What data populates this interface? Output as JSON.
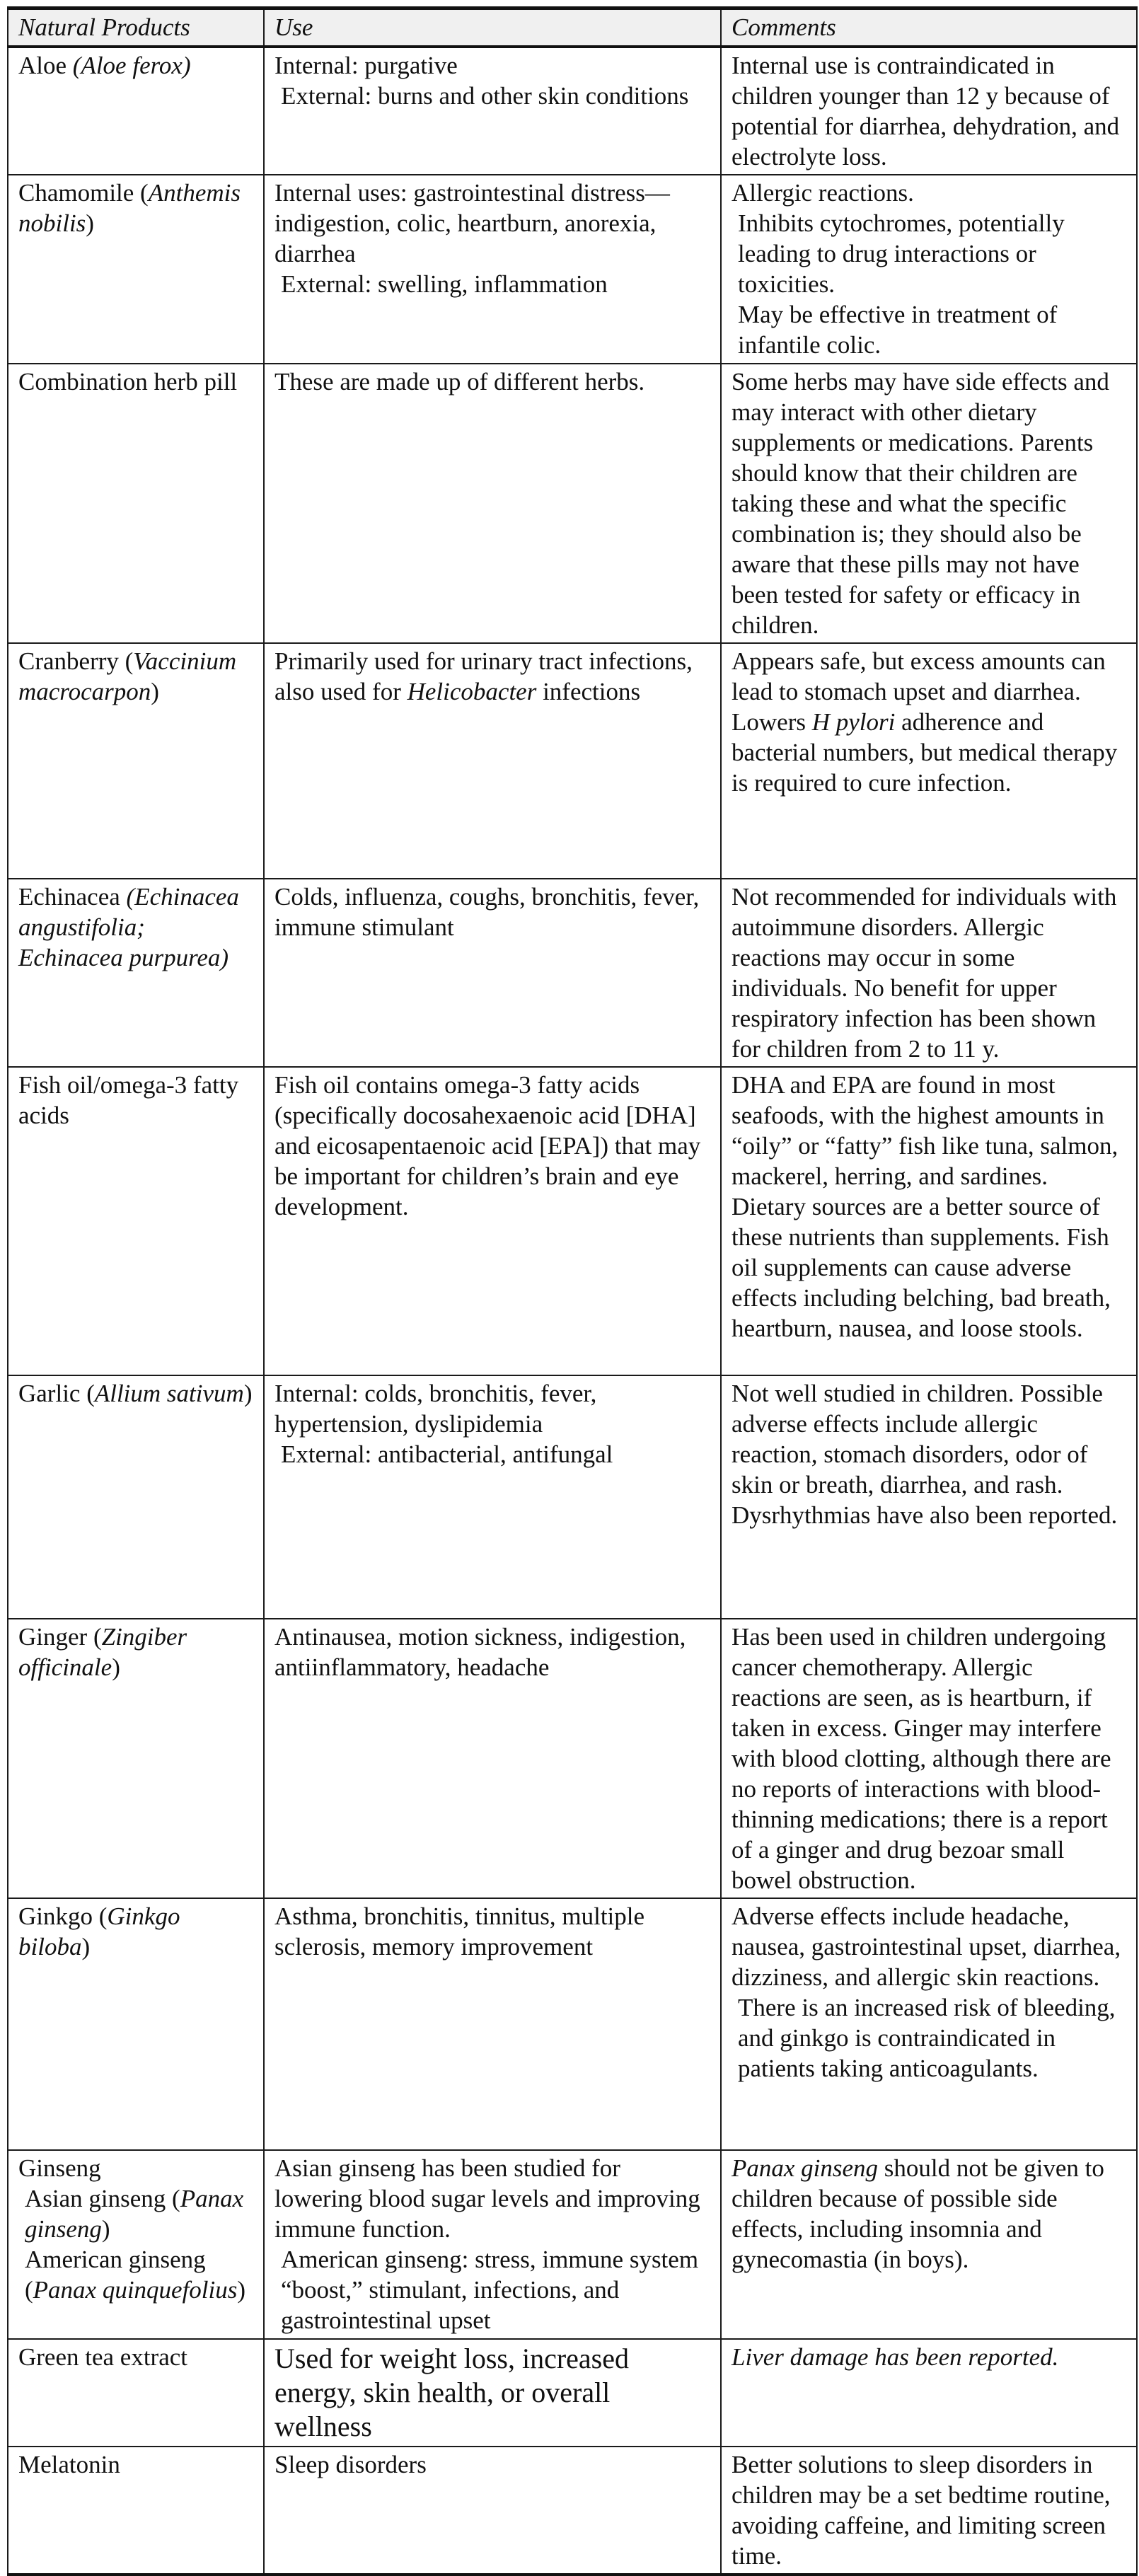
{
  "table": {
    "headers": [
      "Natural Products",
      "Use",
      "Comments"
    ],
    "rows": [
      {
        "product": [
          [
            {
              "t": "Aloe "
            },
            {
              "t": "(Aloe ferox)",
              "i": true
            }
          ]
        ],
        "use": [
          [
            {
              "t": "Internal: purgative"
            }
          ],
          [
            {
              "t": "External: burns and other skin conditions"
            }
          ]
        ],
        "comments": [
          [
            {
              "t": "Internal use is contraindicated in children younger than 12 y because of potential for diarrhea, dehydration, and electrolyte loss."
            }
          ]
        ]
      },
      {
        "product": [
          [
            {
              "t": "Chamomile ("
            },
            {
              "t": "Anthemis nobilis",
              "i": true
            },
            {
              "t": ")"
            }
          ]
        ],
        "use": [
          [
            {
              "t": "Internal uses: gastrointestinal distress—indigestion, colic, heartburn, anorexia, diarrhea"
            }
          ],
          [
            {
              "t": "External: swelling, inflammation"
            }
          ]
        ],
        "comments": [
          [
            {
              "t": "Allergic reactions."
            }
          ],
          [
            {
              "t": "Inhibits cytochromes, potentially leading to drug interactions or toxicities."
            }
          ],
          [
            {
              "t": "May be effective in treatment of infantile colic."
            }
          ]
        ]
      },
      {
        "product": [
          [
            {
              "t": "Combination herb pill"
            }
          ]
        ],
        "use": [
          [
            {
              "t": "These are made up of different herbs."
            }
          ]
        ],
        "comments": [
          [
            {
              "t": "Some herbs may have side effects and may interact with other dietary supplements or medications. Parents should know that their children are taking these and what the specific combination is; they should also be aware that these pills may not have been tested for safety or efficacy in children."
            }
          ]
        ]
      },
      {
        "product": [
          [
            {
              "t": "Cranberry ("
            },
            {
              "t": "Vaccinium macrocarpon",
              "i": true
            },
            {
              "t": ")"
            }
          ]
        ],
        "use": [
          [
            {
              "t": "Primarily used for urinary tract infections, also used for "
            },
            {
              "t": "Helicobacter",
              "i": true
            },
            {
              "t": " infections"
            }
          ]
        ],
        "comments": [
          [
            {
              "t": "Appears safe, but excess amounts can lead to stomach upset and diarrhea. Lowers "
            },
            {
              "t": "H pylori",
              "i": true
            },
            {
              "t": " adherence and bacterial numbers, but medical therapy is required to cure infection."
            }
          ]
        ]
      },
      {
        "product": [
          [
            {
              "t": "Echinacea "
            },
            {
              "t": "(Echinacea angustifolia; Echinacea purpurea)",
              "i": true
            }
          ]
        ],
        "use": [
          [
            {
              "t": "Colds, influenza, coughs, bronchitis, fever, immune stimulant"
            }
          ]
        ],
        "comments": [
          [
            {
              "t": "Not recommended for individuals with autoimmune disorders. Allergic reactions may occur in some individuals. No benefit for upper respiratory infection has been shown for children from 2 to 11 y."
            }
          ]
        ]
      },
      {
        "product": [
          [
            {
              "t": "Fish oil/omega-3 fatty acids"
            }
          ]
        ],
        "use": [
          [
            {
              "t": "Fish oil contains omega-3 fatty acids (specifically docosahexaenoic acid [DHA] and eicosapentaenoic acid [EPA]) that may be important for children’s brain and eye development."
            }
          ]
        ],
        "comments": [
          [
            {
              "t": "DHA and EPA are found in most seafoods, with the highest amounts in “oily” or “fatty” fish like tuna, salmon, mackerel, herring, and sardines. Dietary sources are a better source of these nutrients than supplements. Fish oil supplements can cause adverse effects including belching, bad breath, heartburn, nausea, and loose stools."
            }
          ]
        ]
      },
      {
        "product": [
          [
            {
              "t": "Garlic ("
            },
            {
              "t": "Allium sativum",
              "i": true
            },
            {
              "t": ")"
            }
          ]
        ],
        "use": [
          [
            {
              "t": "Internal: colds, bronchitis, fever, hypertension, dyslipidemia"
            }
          ],
          [
            {
              "t": "External: antibacterial, antifungal"
            }
          ]
        ],
        "comments": [
          [
            {
              "t": "Not well studied in children. Possible adverse effects include allergic reaction, stomach disorders, odor of skin or breath, diarrhea, and rash. Dysrhythmias have also been reported."
            }
          ]
        ]
      },
      {
        "product": [
          [
            {
              "t": "Ginger ("
            },
            {
              "t": "Zingiber officinale",
              "i": true
            },
            {
              "t": ")"
            }
          ]
        ],
        "use": [
          [
            {
              "t": "Antinausea, motion sickness, indigestion, antiinflammatory, headache"
            }
          ]
        ],
        "comments": [
          [
            {
              "t": "Has been used in children undergoing cancer chemotherapy. Allergic reactions are seen, as is heartburn, if taken in excess. Ginger may interfere with blood clotting, although there are no reports of interactions with blood-thinning medications; there is a report of a ginger and drug bezoar small bowel obstruction."
            }
          ]
        ]
      },
      {
        "product": [
          [
            {
              "t": "Ginkgo ("
            },
            {
              "t": "Ginkgo biloba",
              "i": true
            },
            {
              "t": ")"
            }
          ]
        ],
        "use": [
          [
            {
              "t": "Asthma, bronchitis, tinnitus, multiple sclerosis, memory improvement"
            }
          ]
        ],
        "comments": [
          [
            {
              "t": "Adverse effects include headache, nausea, gastrointestinal upset, diarrhea, dizziness, and allergic skin reactions."
            }
          ],
          [
            {
              "t": "There is an increased risk of bleeding, and ginkgo is contraindicated in patients taking anticoagulants."
            }
          ]
        ]
      },
      {
        "product": [
          [
            {
              "t": "Ginseng"
            }
          ],
          [
            {
              "t": "Asian ginseng ("
            },
            {
              "t": "Panax ginseng",
              "i": true
            },
            {
              "t": ")"
            }
          ],
          [
            {
              "t": "American ginseng ("
            },
            {
              "t": "Panax quinquefolius",
              "i": true
            },
            {
              "t": ")"
            }
          ]
        ],
        "use": [
          [
            {
              "t": "Asian ginseng has been studied for lowering blood sugar levels and improving immune function."
            }
          ],
          [
            {
              "t": "American ginseng: stress, immune system “boost,” stimulant, infections, and gastrointestinal upset"
            }
          ]
        ],
        "comments": [
          [
            {
              "t": "Panax ginseng",
              "i": true
            },
            {
              "t": " should not be given to children because of possible side effects, including insomnia and gynecomastia (in boys)."
            }
          ]
        ]
      },
      {
        "product": [
          [
            {
              "t": "Green tea extract"
            }
          ]
        ],
        "use": [
          [
            {
              "t": "Used for weight loss, increased energy, skin health, or overall wellness"
            }
          ]
        ],
        "comments": [
          [
            {
              "t": "Liver damage has been reported.",
              "i": true
            }
          ]
        ]
      },
      {
        "product": [
          [
            {
              "t": "Melatonin"
            }
          ]
        ],
        "use": [
          [
            {
              "t": "Sleep disorders"
            }
          ]
        ],
        "comments": [
          [
            {
              "t": "Better solutions to sleep disorders in children may be a set bedtime routine, avoiding caffeine, and limiting screen time."
            }
          ]
        ]
      }
    ]
  }
}
